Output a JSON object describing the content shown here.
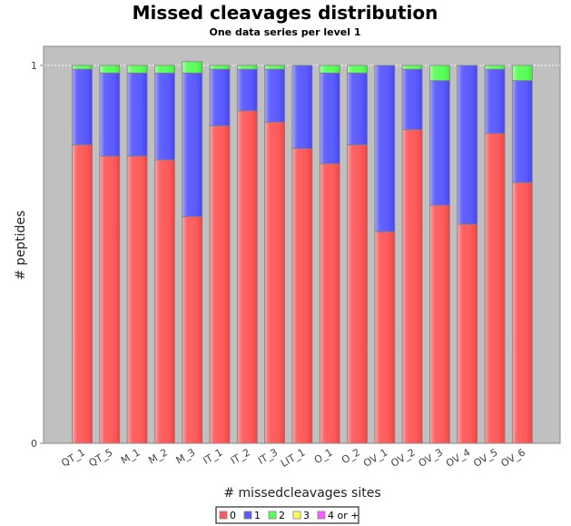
{
  "chart_data": {
    "type": "bar",
    "stacked": true,
    "normalized": true,
    "title": "Missed cleavages distribution",
    "subtitle": "One data series per level 1",
    "xlabel": "# missedcleavages sites",
    "ylabel": "# peptides",
    "ylim": [
      0,
      1
    ],
    "yticks": [
      "0",
      "1"
    ],
    "grid": false,
    "legend_position": "bottom",
    "categories": [
      "QT_1",
      "QT_5",
      "M_1",
      "M_2",
      "M_3",
      "IT_1",
      "IT_2",
      "IT_3",
      "LIT_1",
      "O_1",
      "O_2",
      "OV_1",
      "OV_2",
      "OV_3",
      "OV_4",
      "OV_5",
      "OV_6"
    ],
    "series": [
      {
        "name": "0",
        "color": "#ff5a5a",
        "values": [
          0.79,
          0.76,
          0.76,
          0.75,
          0.6,
          0.84,
          0.88,
          0.85,
          0.78,
          0.74,
          0.79,
          0.56,
          0.83,
          0.63,
          0.58,
          0.82,
          0.69
        ]
      },
      {
        "name": "1",
        "color": "#5a5aff",
        "values": [
          0.2,
          0.22,
          0.22,
          0.23,
          0.38,
          0.15,
          0.11,
          0.14,
          0.22,
          0.24,
          0.19,
          0.44,
          0.16,
          0.33,
          0.42,
          0.17,
          0.27
        ]
      },
      {
        "name": "2",
        "color": "#5aff5a",
        "values": [
          0.01,
          0.02,
          0.02,
          0.02,
          0.03,
          0.01,
          0.01,
          0.01,
          0.0,
          0.02,
          0.02,
          0.0,
          0.01,
          0.04,
          0.0,
          0.01,
          0.04
        ]
      },
      {
        "name": "3",
        "color": "#ffff5a",
        "values": [
          0,
          0,
          0,
          0,
          0,
          0,
          0,
          0,
          0,
          0,
          0,
          0,
          0,
          0,
          0,
          0,
          0
        ]
      },
      {
        "name": "4 or +",
        "color": "#ff5aff",
        "values": [
          0,
          0,
          0,
          0,
          0,
          0,
          0,
          0,
          0,
          0,
          0,
          0,
          0,
          0,
          0,
          0,
          0
        ]
      }
    ]
  }
}
